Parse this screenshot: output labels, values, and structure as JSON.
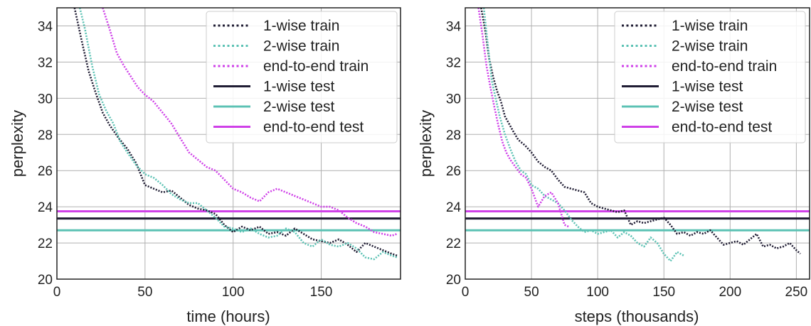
{
  "chart_data": [
    {
      "type": "line",
      "xlabel": "time (hours)",
      "ylabel": "perplexity",
      "xlim": [
        0,
        195
      ],
      "ylim": [
        20,
        35
      ],
      "xticks": [
        0,
        50,
        100,
        150
      ],
      "yticks": [
        20,
        22,
        24,
        26,
        28,
        30,
        32,
        34
      ],
      "grid": true,
      "legend_position": "top-right",
      "series": [
        {
          "name": "1-wise train",
          "style": "dotted",
          "color": "#1f1c33",
          "x": [
            10,
            14,
            18,
            22,
            26,
            30,
            35,
            40,
            45,
            50,
            55,
            60,
            65,
            70,
            75,
            80,
            85,
            90,
            95,
            100,
            105,
            110,
            115,
            120,
            125,
            130,
            135,
            140,
            145,
            150,
            155,
            160,
            165,
            170,
            175,
            180,
            185,
            190,
            193
          ],
          "y": [
            35,
            33.2,
            31.5,
            30.3,
            29.2,
            28.5,
            27.8,
            27.2,
            26.4,
            25.2,
            25.0,
            24.8,
            24.9,
            24.5,
            24.1,
            23.9,
            23.8,
            23.6,
            23.0,
            22.6,
            22.9,
            22.7,
            22.9,
            22.5,
            22.6,
            22.4,
            22.8,
            22.5,
            22.2,
            22.1,
            22.0,
            22.2,
            21.9,
            21.5,
            22.0,
            21.8,
            21.6,
            21.4,
            21.3
          ]
        },
        {
          "name": "2-wise train",
          "style": "dotted",
          "color": "#5cc2b4",
          "x": [
            13,
            16,
            20,
            24,
            28,
            32,
            36,
            40,
            45,
            50,
            55,
            60,
            65,
            70,
            75,
            80,
            85,
            90,
            95,
            100,
            105,
            110,
            115,
            120,
            125,
            130,
            135,
            140,
            145,
            150,
            155,
            160,
            165,
            170,
            175,
            180,
            185,
            190,
            193
          ],
          "y": [
            35,
            33.8,
            31.8,
            30.2,
            29.3,
            28.6,
            27.6,
            27.0,
            26.3,
            25.8,
            25.6,
            25.2,
            24.7,
            24.4,
            24.2,
            24.2,
            23.8,
            23.4,
            22.9,
            22.8,
            22.6,
            22.8,
            22.5,
            22.3,
            22.4,
            22.8,
            22.6,
            22.0,
            21.8,
            22.2,
            21.9,
            21.8,
            22.0,
            21.7,
            21.2,
            21.1,
            21.5,
            21.3,
            21.2
          ]
        },
        {
          "name": "end-to-end train",
          "style": "dotted",
          "color": "#cf40e8",
          "x": [
            26,
            30,
            34,
            38,
            42,
            46,
            50,
            55,
            60,
            65,
            70,
            75,
            80,
            85,
            90,
            95,
            100,
            105,
            110,
            115,
            120,
            125,
            130,
            135,
            140,
            145,
            150,
            155,
            160,
            165,
            170,
            175,
            180,
            185,
            190,
            193
          ],
          "y": [
            35,
            33.8,
            32.5,
            31.8,
            31.2,
            30.6,
            30.2,
            29.8,
            29.2,
            28.6,
            27.8,
            27.0,
            26.6,
            26.2,
            26.0,
            25.5,
            25.0,
            24.8,
            24.5,
            24.3,
            24.8,
            25.0,
            24.8,
            24.6,
            24.4,
            24.2,
            24.0,
            24.0,
            23.8,
            23.4,
            23.1,
            22.9,
            22.6,
            22.5,
            22.4,
            22.5
          ]
        },
        {
          "name": "1-wise test",
          "style": "solid",
          "color": "#1f1c33",
          "y": 23.35
        },
        {
          "name": "2-wise test",
          "style": "solid",
          "color": "#5cc2b4",
          "y": 22.7
        },
        {
          "name": "end-to-end test",
          "style": "solid",
          "color": "#cf40e8",
          "y": 23.75
        }
      ]
    },
    {
      "type": "line",
      "xlabel": "steps (thousands)",
      "ylabel": "perplexity",
      "xlim": [
        0,
        260
      ],
      "ylim": [
        20,
        35
      ],
      "xticks": [
        0,
        50,
        100,
        150,
        200,
        250
      ],
      "yticks": [
        20,
        22,
        24,
        26,
        28,
        30,
        32,
        34
      ],
      "grid": true,
      "legend_position": "top-right",
      "series": [
        {
          "name": "1-wise train",
          "style": "dotted",
          "color": "#1f1c33",
          "x": [
            12,
            15,
            18,
            21,
            24,
            27,
            30,
            33,
            36,
            40,
            45,
            50,
            55,
            60,
            65,
            70,
            75,
            80,
            85,
            90,
            95,
            100,
            105,
            110,
            115,
            120,
            125,
            130,
            135,
            140,
            145,
            150,
            155,
            160,
            165,
            170,
            175,
            180,
            185,
            190,
            195,
            200,
            205,
            210,
            215,
            220,
            225,
            230,
            235,
            240,
            245,
            250,
            253
          ],
          "y": [
            35,
            33.8,
            32.2,
            31.2,
            30.4,
            29.8,
            29.0,
            28.6,
            28.2,
            27.7,
            27.4,
            27.0,
            26.5,
            26.2,
            26.0,
            25.5,
            25.1,
            25.0,
            24.9,
            24.8,
            24.2,
            24.0,
            23.9,
            23.8,
            23.7,
            23.8,
            23.0,
            23.2,
            23.1,
            23.2,
            23.3,
            23.4,
            23.0,
            22.5,
            22.6,
            22.4,
            22.6,
            22.5,
            22.7,
            22.3,
            21.9,
            22.0,
            22.1,
            21.9,
            22.2,
            22.5,
            21.8,
            21.9,
            21.7,
            21.8,
            22.0,
            21.6,
            21.4
          ]
        },
        {
          "name": "2-wise train",
          "style": "dotted",
          "color": "#5cc2b4",
          "x": [
            14,
            17,
            20,
            23,
            26,
            30,
            34,
            38,
            42,
            46,
            50,
            55,
            60,
            65,
            70,
            75,
            80,
            85,
            90,
            95,
            100,
            105,
            110,
            115,
            120,
            125,
            130,
            135,
            140,
            145,
            150,
            155,
            160,
            165
          ],
          "y": [
            35,
            33.0,
            31.0,
            30.0,
            29.0,
            28.0,
            27.2,
            26.5,
            26.0,
            25.8,
            25.2,
            25.0,
            24.6,
            24.4,
            24.2,
            23.8,
            23.3,
            22.9,
            22.6,
            22.7,
            22.5,
            22.6,
            22.7,
            22.3,
            22.6,
            22.4,
            22.0,
            21.8,
            22.3,
            22.0,
            21.4,
            21.0,
            21.5,
            21.3
          ]
        },
        {
          "name": "end-to-end train",
          "style": "dotted",
          "color": "#cf40e8",
          "x": [
            10,
            13,
            16,
            19,
            22,
            25,
            28,
            31,
            34,
            38,
            42,
            46,
            50,
            55,
            60,
            65,
            70,
            75,
            78
          ],
          "y": [
            35,
            33.5,
            31.8,
            30.6,
            29.5,
            28.5,
            27.6,
            27.0,
            26.6,
            26.2,
            25.8,
            25.6,
            25.0,
            24.0,
            24.6,
            24.8,
            24.2,
            23.0,
            22.9
          ]
        },
        {
          "name": "1-wise test",
          "style": "solid",
          "color": "#1f1c33",
          "y": 23.35
        },
        {
          "name": "2-wise test",
          "style": "solid",
          "color": "#5cc2b4",
          "y": 22.7
        },
        {
          "name": "end-to-end test",
          "style": "solid",
          "color": "#cf40e8",
          "y": 23.75
        }
      ]
    }
  ]
}
